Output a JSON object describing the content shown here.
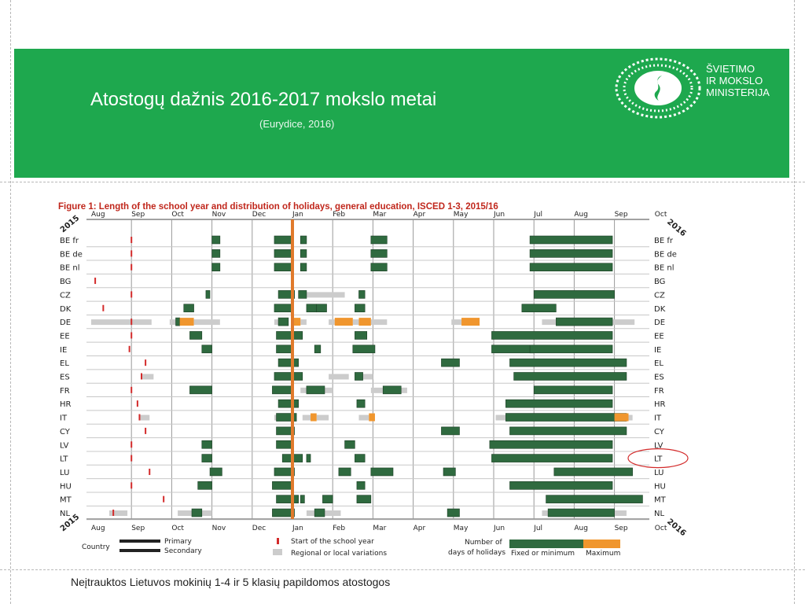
{
  "header": {
    "title": "Atostogų dažnis 2016-2017 mokslo metai",
    "subtitle": "(Eurydice, 2016)"
  },
  "logo": {
    "line1": "ŠVIETIMO",
    "line2": "IR MOKSLO",
    "line3": "MINISTERIJA",
    "icon": "ministry-emblem-icon"
  },
  "footer": {
    "note": "Neįtrauktos Lietuvos  mokinių 1-4 ir 5 klasių papildomos atostogos"
  },
  "colors": {
    "banner": "#1ea84e",
    "fixed": "#2f6a3f",
    "maximum": "#f0962e",
    "regional": "#cccccc",
    "start": "#d32a2a",
    "christmas": "#e07a2c",
    "highlight": "#d32a2a"
  },
  "chart_data": {
    "type": "timeline",
    "title": "Figure 1: Length of the school year and distribution of holidays, general education, ISCED 1-3, 2015/16",
    "year_start_label": "2015",
    "year_end_label": "2016",
    "months": [
      "Aug",
      "Sep",
      "Oct",
      "Nov",
      "Dec",
      "Jan",
      "Feb",
      "Mar",
      "Apr",
      "May",
      "Jun",
      "Jul",
      "Aug",
      "Sep",
      "Oct"
    ],
    "x_unit": "months since 1 Aug 2015",
    "highlighted_country": "LT",
    "legend": {
      "country": "Country",
      "primary": "Primary",
      "secondary": "Secondary",
      "start": "Start of the school year",
      "regional": "Regional or local variations",
      "days_line1": "Number of",
      "days_line2": "days of holidays",
      "fixed": "Fixed or minimum",
      "maximum": "Maximum"
    },
    "countries": [
      {
        "code": "BE fr",
        "start": [
          1.0
        ],
        "green": [
          [
            3.0,
            3.2
          ],
          [
            4.55,
            5.0
          ],
          [
            5.2,
            5.35
          ],
          [
            6.95,
            7.35
          ],
          [
            10.9,
            12.95
          ]
        ],
        "orange": [],
        "grey": []
      },
      {
        "code": "BE de",
        "start": [
          1.0
        ],
        "green": [
          [
            3.0,
            3.2
          ],
          [
            4.55,
            5.0
          ],
          [
            5.2,
            5.35
          ],
          [
            6.95,
            7.35
          ],
          [
            10.9,
            12.95
          ]
        ],
        "orange": [],
        "grey": []
      },
      {
        "code": "BE nl",
        "start": [
          1.0
        ],
        "green": [
          [
            3.0,
            3.2
          ],
          [
            4.55,
            5.0
          ],
          [
            5.2,
            5.35
          ],
          [
            6.95,
            7.35
          ],
          [
            10.9,
            12.95
          ]
        ],
        "orange": [],
        "grey": []
      },
      {
        "code": "BG",
        "start": [
          0.1
        ],
        "green": [],
        "orange": [],
        "grey": []
      },
      {
        "code": "CZ",
        "start": [
          1.0
        ],
        "green": [
          [
            2.85,
            2.95
          ],
          [
            4.65,
            5.05
          ],
          [
            5.0,
            5.05
          ],
          [
            5.15,
            5.35
          ],
          [
            6.65,
            6.8
          ],
          [
            11.0,
            13.0
          ]
        ],
        "orange": [],
        "grey": [
          [
            5.3,
            6.3
          ]
        ]
      },
      {
        "code": "DK",
        "start": [
          0.3
        ],
        "green": [
          [
            2.3,
            2.55
          ],
          [
            4.55,
            5.0
          ],
          [
            5.35,
            5.6
          ],
          [
            5.6,
            5.85
          ],
          [
            6.55,
            6.8
          ],
          [
            10.7,
            11.55
          ]
        ],
        "orange": [],
        "grey": []
      },
      {
        "code": "DE",
        "start": [
          1.0
        ],
        "green": [
          [
            2.1,
            2.2
          ],
          [
            4.65,
            4.9
          ],
          [
            11.55,
            12.95
          ]
        ],
        "orange": [
          [
            2.2,
            2.55
          ],
          [
            5.0,
            5.2
          ],
          [
            6.05,
            6.5
          ],
          [
            6.65,
            6.95
          ],
          [
            9.2,
            9.65
          ]
        ],
        "grey": [
          [
            0.0,
            1.5
          ],
          [
            1.95,
            2.1
          ],
          [
            2.55,
            3.2
          ],
          [
            4.55,
            4.65
          ],
          [
            5.2,
            5.35
          ],
          [
            5.9,
            6.05
          ],
          [
            6.5,
            6.75
          ],
          [
            6.95,
            7.35
          ],
          [
            8.95,
            9.2
          ],
          [
            11.2,
            11.55
          ],
          [
            12.95,
            13.5
          ]
        ]
      },
      {
        "code": "EE",
        "start": [
          1.0
        ],
        "green": [
          [
            2.45,
            2.75
          ],
          [
            4.6,
            5.25
          ],
          [
            6.55,
            6.85
          ],
          [
            9.95,
            12.95
          ]
        ],
        "orange": [],
        "grey": []
      },
      {
        "code": "IE",
        "start": [
          0.95
        ],
        "green": [
          [
            2.75,
            3.0
          ],
          [
            4.6,
            5.0
          ],
          [
            5.55,
            5.7
          ],
          [
            6.5,
            7.05
          ],
          [
            9.95,
            11.0
          ],
          [
            10.9,
            12.95
          ]
        ],
        "orange": [],
        "grey": []
      },
      {
        "code": "EL",
        "start": [
          1.35
        ],
        "green": [
          [
            4.65,
            5.15
          ],
          [
            8.7,
            9.15
          ],
          [
            10.4,
            13.3
          ]
        ],
        "orange": [],
        "grey": []
      },
      {
        "code": "ES",
        "start": [
          1.25
        ],
        "green": [
          [
            4.55,
            5.25
          ],
          [
            6.55,
            6.75
          ],
          [
            10.5,
            13.3
          ]
        ],
        "orange": [],
        "grey": [
          [
            1.25,
            1.55
          ],
          [
            5.9,
            6.4
          ],
          [
            6.75,
            7.0
          ]
        ]
      },
      {
        "code": "FR",
        "start": [
          1.0
        ],
        "green": [
          [
            2.45,
            3.0
          ],
          [
            4.5,
            5.0
          ],
          [
            5.35,
            5.8
          ],
          [
            7.25,
            7.7
          ],
          [
            11.0,
            12.95
          ]
        ],
        "orange": [],
        "grey": [
          [
            5.2,
            6.0
          ],
          [
            6.95,
            7.85
          ]
        ]
      },
      {
        "code": "HR",
        "start": [
          1.15
        ],
        "green": [
          [
            4.65,
            5.15
          ],
          [
            6.6,
            6.8
          ],
          [
            10.3,
            12.95
          ]
        ],
        "orange": [],
        "grey": []
      },
      {
        "code": "IT",
        "start": [
          1.2
        ],
        "green": [
          [
            4.6,
            5.1
          ],
          [
            10.3,
            13.3
          ]
        ],
        "orange": [
          [
            5.45,
            5.6
          ],
          [
            6.9,
            7.05
          ],
          [
            13.0,
            13.35
          ]
        ],
        "grey": [
          [
            1.2,
            1.45
          ],
          [
            4.55,
            4.6
          ],
          [
            5.0,
            5.1
          ],
          [
            5.25,
            5.45
          ],
          [
            5.6,
            5.9
          ],
          [
            6.65,
            6.9
          ],
          [
            10.05,
            10.3
          ],
          [
            13.35,
            13.45
          ]
        ]
      },
      {
        "code": "CY",
        "start": [
          1.35
        ],
        "green": [
          [
            4.6,
            5.05
          ],
          [
            8.7,
            9.15
          ],
          [
            10.4,
            13.3
          ]
        ],
        "orange": [],
        "grey": []
      },
      {
        "code": "LV",
        "start": [
          1.0
        ],
        "green": [
          [
            2.75,
            3.0
          ],
          [
            4.6,
            5.0
          ],
          [
            6.3,
            6.55
          ],
          [
            9.9,
            12.95
          ]
        ],
        "orange": [],
        "grey": []
      },
      {
        "code": "LT",
        "start": [
          1.0
        ],
        "green": [
          [
            2.75,
            3.0
          ],
          [
            4.75,
            5.25
          ],
          [
            5.35,
            5.45
          ],
          [
            6.55,
            6.8
          ],
          [
            9.95,
            12.95
          ]
        ],
        "orange": [],
        "grey": []
      },
      {
        "code": "LU",
        "start": [
          1.45
        ],
        "green": [
          [
            2.95,
            3.25
          ],
          [
            4.55,
            5.05
          ],
          [
            6.15,
            6.45
          ],
          [
            6.95,
            7.5
          ],
          [
            8.75,
            9.05
          ],
          [
            11.5,
            13.45
          ]
        ],
        "orange": [],
        "grey": []
      },
      {
        "code": "HU",
        "start": [
          1.0
        ],
        "green": [
          [
            2.65,
            3.0
          ],
          [
            4.5,
            5.0
          ],
          [
            6.6,
            6.8
          ],
          [
            10.4,
            12.95
          ]
        ],
        "orange": [],
        "grey": []
      },
      {
        "code": "MT",
        "start": [
          1.8
        ],
        "green": [
          [
            4.6,
            5.15
          ],
          [
            5.2,
            5.3
          ],
          [
            5.75,
            6.0
          ],
          [
            6.6,
            6.95
          ],
          [
            11.3,
            13.7
          ]
        ],
        "orange": [],
        "grey": []
      },
      {
        "code": "NL",
        "start": [
          0.55
        ],
        "green": [
          [
            2.5,
            2.75
          ],
          [
            4.5,
            5.05
          ],
          [
            5.55,
            5.8
          ],
          [
            8.85,
            9.15
          ],
          [
            11.35,
            13.0
          ]
        ],
        "orange": [],
        "grey": [
          [
            0.45,
            0.9
          ],
          [
            2.15,
            2.5
          ],
          [
            2.75,
            3.0
          ],
          [
            5.35,
            5.55
          ],
          [
            5.8,
            6.2
          ],
          [
            11.2,
            11.35
          ],
          [
            13.0,
            13.3
          ]
        ]
      }
    ]
  }
}
